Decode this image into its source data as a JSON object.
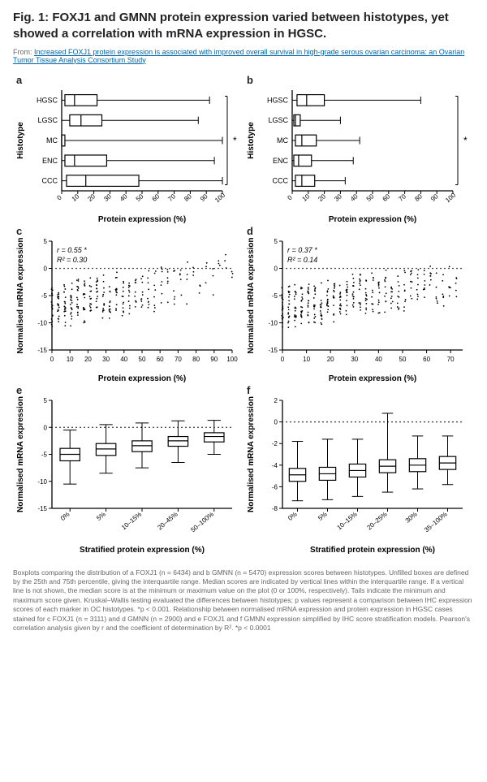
{
  "title": "Fig. 1: FOXJ1 and GMNN protein expression varied between histotypes, yet showed a correlation with mRNA expression in HGSC.",
  "from_prefix": "From: ",
  "from_link": "Increased FOXJ1 protein expression is associated with improved overall survival in high-grade serous ovarian carcinoma: an Ovarian Tumor Tissue Analysis Consortium Study",
  "panels": {
    "a": {
      "letter": "a",
      "type": "boxplot-horizontal",
      "ylabel": "Histotype",
      "xlabel": "Protein expression (%)",
      "xlim": [
        0,
        100
      ],
      "xticks": [
        0,
        10,
        20,
        30,
        40,
        50,
        60,
        70,
        80,
        90,
        100
      ],
      "categories": [
        "HGSC",
        "LGSC",
        "MC",
        "ENC",
        "CCC"
      ],
      "boxes": [
        {
          "q1": 2,
          "median": 8,
          "q3": 22,
          "wlo": 0,
          "whi": 92
        },
        {
          "q1": 5,
          "median": 12,
          "q3": 25,
          "wlo": 0,
          "whi": 85
        },
        {
          "q1": 0,
          "median": 0,
          "q3": 2,
          "wlo": 0,
          "whi": 100
        },
        {
          "q1": 2,
          "median": 8,
          "q3": 28,
          "wlo": 0,
          "whi": 95
        },
        {
          "q1": 3,
          "median": 15,
          "q3": 48,
          "wlo": 0,
          "whi": 100
        }
      ],
      "sig_label": "*",
      "colors": {
        "stroke": "#000000",
        "fill": "#ffffff",
        "text": "#000000"
      }
    },
    "b": {
      "letter": "b",
      "type": "boxplot-horizontal",
      "ylabel": "Histotype",
      "xlabel": "Protein expression (%)",
      "xlim": [
        0,
        100
      ],
      "xticks": [
        0,
        10,
        20,
        30,
        40,
        50,
        60,
        70,
        80,
        90,
        100
      ],
      "categories": [
        "HGSC",
        "LGSC",
        "MC",
        "ENC",
        "CCC"
      ],
      "boxes": [
        {
          "q1": 3,
          "median": 9,
          "q3": 20,
          "wlo": 0,
          "whi": 80
        },
        {
          "q1": 1,
          "median": 2,
          "q3": 5,
          "wlo": 0,
          "whi": 30
        },
        {
          "q1": 2,
          "median": 6,
          "q3": 15,
          "wlo": 0,
          "whi": 42
        },
        {
          "q1": 1,
          "median": 4,
          "q3": 12,
          "wlo": 0,
          "whi": 38
        },
        {
          "q1": 2,
          "median": 6,
          "q3": 14,
          "wlo": 0,
          "whi": 33
        }
      ],
      "sig_label": "*",
      "colors": {
        "stroke": "#000000",
        "fill": "#ffffff",
        "text": "#000000"
      }
    },
    "c": {
      "letter": "c",
      "type": "scatter",
      "ylabel": "Normalised mRNA expression",
      "xlabel": "Protein expression (%)",
      "xlim": [
        0,
        100
      ],
      "xticks": [
        0,
        10,
        20,
        30,
        40,
        50,
        60,
        70,
        80,
        90,
        100
      ],
      "ylim": [
        -15,
        5
      ],
      "yticks": [
        -15,
        -10,
        -5,
        0,
        5
      ],
      "stat_r": "r = 0.55 *",
      "stat_r2": "R² = 0.30",
      "colors": {
        "stroke": "#000000",
        "point": "#000000",
        "text": "#000000"
      }
    },
    "d": {
      "letter": "d",
      "type": "scatter",
      "ylabel": "Normalised mRNA expression",
      "xlabel": "Protein expression (%)",
      "xlim": [
        0,
        75
      ],
      "xticks": [
        0,
        10,
        20,
        30,
        40,
        50,
        60,
        70
      ],
      "ylim": [
        -15,
        5
      ],
      "yticks": [
        -15,
        -10,
        -5,
        0,
        5
      ],
      "stat_r": "r = 0.37 *",
      "stat_r2": "R² = 0.14",
      "colors": {
        "stroke": "#000000",
        "point": "#000000",
        "text": "#000000"
      }
    },
    "e": {
      "letter": "e",
      "type": "boxplot-vertical",
      "ylabel": "Normalised mRNA expression",
      "xlabel": "Stratified protein expression (%)",
      "ylim": [
        -15,
        5
      ],
      "yticks": [
        -15,
        -10,
        -5,
        0,
        5
      ],
      "categories": [
        "0%",
        "5%",
        "10–15%",
        "20–45%",
        "50–100%"
      ],
      "boxes": [
        {
          "q1": -6.2,
          "median": -5.0,
          "q3": -3.9,
          "wlo": -10.5,
          "whi": -0.5
        },
        {
          "q1": -5.2,
          "median": -4.0,
          "q3": -3.0,
          "wlo": -8.5,
          "whi": 0.5
        },
        {
          "q1": -4.5,
          "median": -3.4,
          "q3": -2.5,
          "wlo": -7.5,
          "whi": 0.8
        },
        {
          "q1": -3.5,
          "median": -2.5,
          "q3": -1.7,
          "wlo": -6.5,
          "whi": 1.2
        },
        {
          "q1": -2.7,
          "median": -1.7,
          "q3": -1.0,
          "wlo": -5.0,
          "whi": 1.3
        }
      ],
      "colors": {
        "stroke": "#000000",
        "fill": "#ffffff",
        "text": "#000000"
      }
    },
    "f": {
      "letter": "f",
      "type": "boxplot-vertical",
      "ylabel": "Normalised mRNA expression",
      "xlabel": "Stratified protein expression (%)",
      "ylim": [
        -8,
        2
      ],
      "yticks": [
        -8,
        -6,
        -4,
        -2,
        0,
        2
      ],
      "categories": [
        "0%",
        "5%",
        "10–15%",
        "20–25%",
        "30%",
        "35–100%"
      ],
      "boxes": [
        {
          "q1": -5.5,
          "median": -4.9,
          "q3": -4.3,
          "wlo": -7.3,
          "whi": -1.8
        },
        {
          "q1": -5.4,
          "median": -4.8,
          "q3": -4.2,
          "wlo": -7.2,
          "whi": -1.6
        },
        {
          "q1": -5.1,
          "median": -4.5,
          "q3": -3.9,
          "wlo": -6.9,
          "whi": -1.6
        },
        {
          "q1": -4.7,
          "median": -4.1,
          "q3": -3.5,
          "wlo": -6.5,
          "whi": 0.8
        },
        {
          "q1": -4.6,
          "median": -4.0,
          "q3": -3.4,
          "wlo": -6.2,
          "whi": -1.3
        },
        {
          "q1": -4.4,
          "median": -3.8,
          "q3": -3.2,
          "wlo": -5.8,
          "whi": -1.3
        }
      ],
      "colors": {
        "stroke": "#000000",
        "fill": "#ffffff",
        "text": "#000000"
      }
    }
  },
  "caption": "Boxplots comparing the distribution of a FOXJ1 (n = 6434) and b GMNN (n = 5470) expression scores between histotypes. Unfilled boxes are defined by the 25th and 75th percentile, giving the interquartile range. Median scores are indicated by vertical lines within the interquartile range. If a vertical line is not shown, the median score is at the minimum or maximum value on the plot (0 or 100%, respectively). Tails indicate the minimum and maximum score given. Kruskal–Wallis testing evaluated the differences between histotypes; p values represent a comparison between IHC expression scores of each marker in OC histotypes. *p < 0.001. Relationship between normalised mRNA expression and protein expression in HGSC cases stained for c FOXJ1 (n = 3111) and d GMNN (n = 2900) and e FOXJ1 and f GMNN expression simplified by IHC score stratification models. Pearson's correlation analysis given by r and the coefficient of determination by R². *p < 0.0001"
}
